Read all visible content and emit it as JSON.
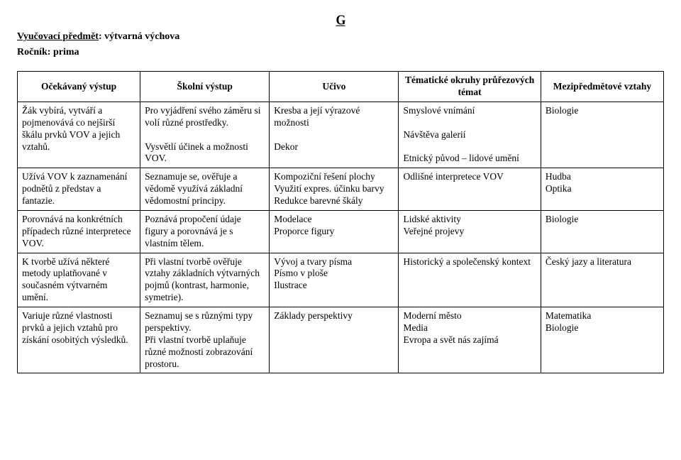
{
  "header": {
    "icon_text": "G",
    "subject_label": "Vyučovací předmět",
    "subject_value": "výtvarná výchova",
    "grade_label": "Ročník",
    "grade_value": "prima"
  },
  "table": {
    "columns": [
      "Očekávaný výstup",
      "Školní výstup",
      "Učivo",
      "Tématické okruhy průřezových témat",
      "Mezipředmětové vztahy"
    ],
    "rows": [
      {
        "c1": "Žák vybírá, vytváří a pojmenovává co nejširší škálu prvků VOV a jejich vztahů.",
        "c2": "Pro vyjádření svého záměru si volí různé prostředky.\n\nVysvětlí účinek a možnosti VOV.",
        "c3": "Kresba a její výrazové možnosti\n\nDekor",
        "c4": "Smyslové vnímání\n\nNávštěva galerií\n\nEtnický původ – lidové umění",
        "c5": "Biologie"
      },
      {
        "c1": "Užívá VOV k zaznamenání podnětů z představ a fantazie.",
        "c2": "Seznamuje se, ověřuje a vědomě využívá základní vědomostní principy.",
        "c3": "Kompoziční řešení plochy\nVyužití expres. účinku barvy\nRedukce barevné škály",
        "c4": "Odlišné interpretece VOV",
        "c5": "Hudba\nOptika"
      },
      {
        "c1": "Porovnává na konkrétních případech různé interpretece VOV.",
        "c2": "Poznává propočení údaje figury a porovnává je s vlastním tělem.",
        "c3": "Modelace\n Proporce figury",
        "c4": "Lidské aktivity\nVeřejné projevy",
        "c5": "Biologie"
      },
      {
        "c1": "K tvorbě užívá některé metody uplatňované v současném výtvarném umění.",
        "c2": "Při vlastní tvorbě ověřuje vztahy základních výtvarných pojmů (kontrast, harmonie, symetrie).",
        "c3": "Vývoj a tvary písma\nPísmo v ploše\nIlustrace",
        "c4": "Historický a společenský kontext",
        "c5": "Český jazy a literatura"
      },
      {
        "c1": "Variuje různé vlastnosti prvků a jejich vztahů pro získání osobitých výsledků.",
        "c2": "Seznamuj se s různými typy perspektivy.\nPři vlastní tvorbě uplaňuje různé možnosti zobrazování prostoru.",
        "c3": "Základy perspektivy",
        "c4": "Moderní město\nMedia\nEvropa a svět nás zajímá",
        "c5": "Matematika\nBiologie"
      }
    ]
  }
}
